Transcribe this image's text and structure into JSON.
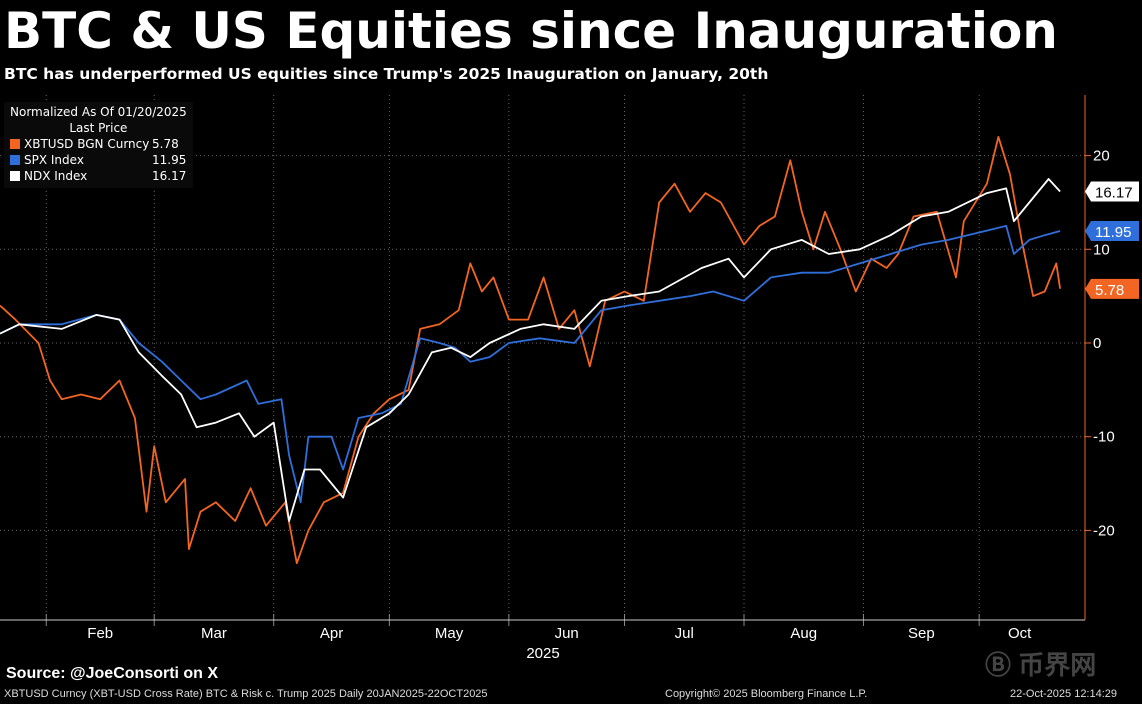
{
  "chart_data": {
    "type": "line",
    "title": "BTC & US Equities since Inauguration",
    "subtitle": "BTC has underperformed US equities since Trump's 2025 Inauguration on January, 20th",
    "x_unit": "days since 2025-01-20",
    "xlabel": "2025",
    "x_ticks": [
      {
        "label": "Feb",
        "day": 12
      },
      {
        "label": "Mar",
        "day": 40
      },
      {
        "label": "Apr",
        "day": 71
      },
      {
        "label": "May",
        "day": 101
      },
      {
        "label": "Jun",
        "day": 132
      },
      {
        "label": "Jul",
        "day": 162
      },
      {
        "label": "Aug",
        "day": 193
      },
      {
        "label": "Sep",
        "day": 224
      },
      {
        "label": "Oct",
        "day": 254
      }
    ],
    "xlim": [
      0,
      281
    ],
    "ylim": [
      -29,
      25
    ],
    "y_ticks": [
      20,
      10,
      0,
      -10,
      -20
    ],
    "grid": true,
    "legend": {
      "placement": "top-left",
      "header1": "Normalized As Of 01/20/2025",
      "header2": "Last Price"
    },
    "series": [
      {
        "name": "XBTUSD BGN Curncy",
        "last": "5.78",
        "color": "#f26522",
        "x": [
          0,
          4,
          10,
          13,
          16,
          21,
          26,
          31,
          35,
          38,
          40,
          43,
          48,
          49,
          52,
          56,
          61,
          65,
          69,
          74,
          77,
          80,
          84,
          89,
          93,
          97,
          101,
          106,
          109,
          114,
          119,
          122,
          125,
          128,
          132,
          137,
          141,
          145,
          149,
          153,
          157,
          162,
          167,
          171,
          175,
          179,
          183,
          187,
          193,
          197,
          201,
          205,
          208,
          211,
          214,
          218,
          222,
          226,
          230,
          233,
          237,
          243,
          248,
          250,
          256,
          259,
          262,
          265,
          268,
          271,
          274,
          275
        ],
        "y": [
          4,
          2.5,
          0,
          -4,
          -6,
          -5.5,
          -6,
          -4,
          -8,
          -18,
          -11,
          -17,
          -14.5,
          -22,
          -18,
          -17,
          -19,
          -15.5,
          -19.5,
          -17,
          -23.5,
          -20,
          -17,
          -16,
          -10,
          -7.5,
          -6,
          -5,
          1.5,
          2,
          3.5,
          8.5,
          5.5,
          7,
          2.5,
          2.5,
          7,
          1.5,
          3.5,
          -2.5,
          4.5,
          5.5,
          4.5,
          15,
          17,
          14,
          16,
          15,
          10.5,
          12.5,
          13.5,
          19.5,
          14,
          10,
          14,
          10,
          5.5,
          9,
          8,
          9.5,
          13.5,
          14,
          7,
          13,
          17,
          22,
          18,
          11,
          5,
          5.5,
          8.5,
          5.78
        ]
      },
      {
        "name": "SPX Index",
        "last": "11.95",
        "color": "#2f6fdc",
        "x": [
          0,
          5,
          16,
          25,
          31,
          36,
          42,
          47,
          52,
          56,
          64,
          67,
          73,
          75,
          78,
          80,
          86,
          89,
          93,
          99,
          104,
          109,
          114,
          118,
          122,
          127,
          132,
          140,
          149,
          156,
          163,
          171,
          179,
          185,
          193,
          200,
          208,
          215,
          223,
          231,
          239,
          246,
          256,
          261,
          263,
          267,
          271,
          275
        ],
        "y": [
          1,
          2,
          2,
          3,
          2.5,
          0,
          -2,
          -4,
          -6,
          -5.5,
          -4,
          -6.5,
          -6,
          -12,
          -17,
          -10,
          -10,
          -13.5,
          -8,
          -7.5,
          -6.5,
          0.5,
          0,
          -0.5,
          -2,
          -1.5,
          0,
          0.5,
          0,
          3.5,
          4,
          4.5,
          5,
          5.5,
          4.5,
          7,
          7.5,
          7.5,
          8.5,
          9.5,
          10.5,
          11,
          12,
          12.5,
          9.5,
          11,
          11.5,
          11.95
        ]
      },
      {
        "name": "NDX Index",
        "last": "16.17",
        "color": "#ffffff",
        "x": [
          0,
          5,
          16,
          25,
          31,
          36,
          42,
          47,
          51,
          56,
          62,
          66,
          71,
          75,
          79,
          83,
          89,
          95,
          101,
          106,
          112,
          117,
          122,
          127,
          135,
          141,
          149,
          156,
          163,
          171,
          182,
          189,
          193,
          200,
          208,
          215,
          223,
          231,
          239,
          246,
          256,
          261,
          263,
          267,
          272,
          275
        ],
        "y": [
          1,
          2,
          1.5,
          3,
          2.5,
          -1,
          -3.5,
          -5.5,
          -9,
          -8.5,
          -7.5,
          -10,
          -8.5,
          -19,
          -13.5,
          -13.5,
          -16.5,
          -9,
          -7.5,
          -5.5,
          -1,
          -0.5,
          -1.5,
          0,
          1.5,
          2,
          1.5,
          4.5,
          5,
          5.5,
          8,
          9,
          7,
          10,
          11,
          9.5,
          10,
          11.5,
          13.5,
          14,
          16,
          16.5,
          13,
          15,
          17.5,
          16.17
        ]
      }
    ]
  },
  "source": "Source: @JoeConsorti on X",
  "footer": {
    "left": "XBTUSD Curncy (XBT-USD Cross Rate) BTC & Risk c. Trump 2025 Daily 20JAN2025-22OCT2025",
    "center": "Copyright© 2025 Bloomberg Finance L.P.",
    "right": "22-Oct-2025 12:14:29"
  },
  "watermark": "币界网"
}
